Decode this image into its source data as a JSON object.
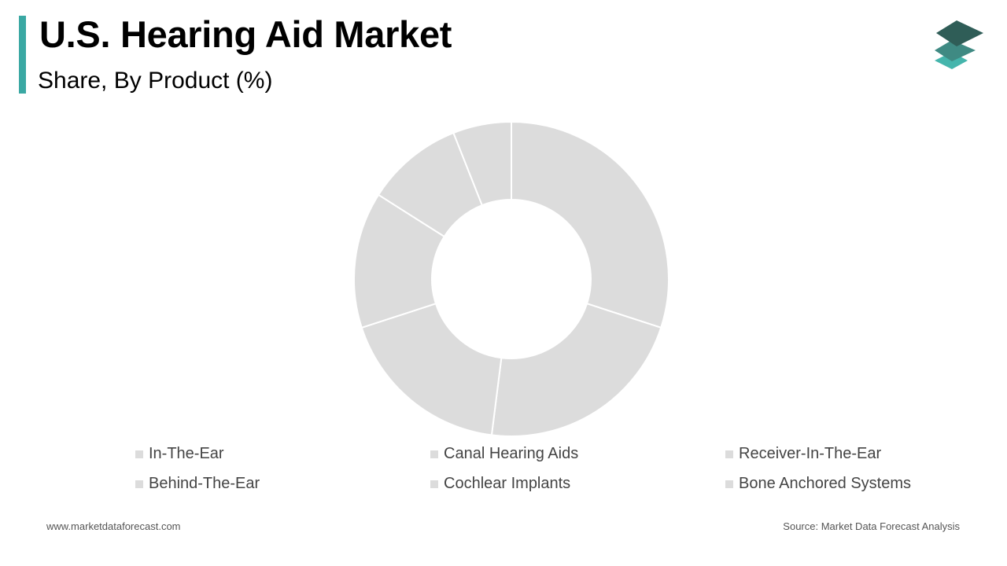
{
  "header": {
    "title": "U.S. Hearing Aid Market",
    "subtitle": "Share, By Product (%)",
    "accent_color": "#3aa8a3"
  },
  "logo": {
    "icon": "stacked-layers-icon",
    "colors": [
      "#2f5d57",
      "#3f8a83",
      "#45b5ac"
    ]
  },
  "chart_data": {
    "type": "pie",
    "subtype": "donut",
    "title": "Share, By Product (%)",
    "slice_color": "#dcdcdc",
    "separator_color": "#ffffff",
    "categories": [
      "In-The-Ear",
      "Canal Hearing Aids",
      "Receiver-In-The-Ear",
      "Behind-The-Ear",
      "Cochlear Implants",
      "Bone Anchored Systems"
    ],
    "values": [
      30,
      22,
      18,
      14,
      10,
      6
    ],
    "legend_position": "bottom"
  },
  "footer": {
    "website": "www.marketdataforecast.com",
    "source": "Source: Market Data Forecast Analysis"
  }
}
